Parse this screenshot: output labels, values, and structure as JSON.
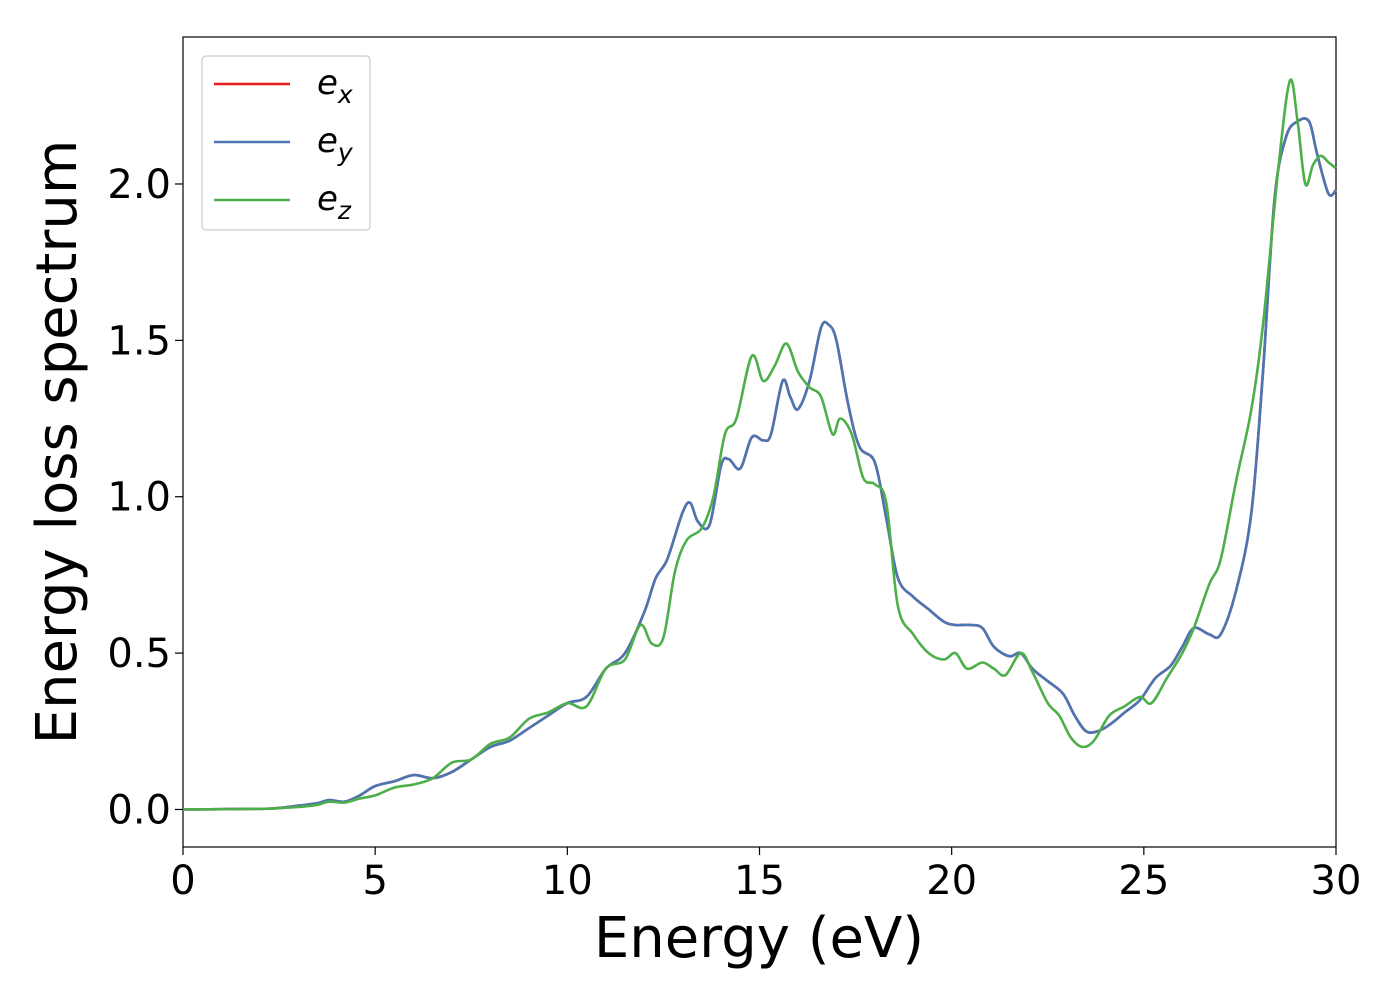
{
  "chart_data": {
    "type": "line",
    "xlabel": "Energy (eV)",
    "ylabel": "Energy loss spectrum",
    "xlim": [
      0,
      30
    ],
    "ylim": [
      -0.12,
      2.47
    ],
    "xticks": [
      0,
      5,
      10,
      15,
      20,
      25,
      30
    ],
    "xtick_labels": [
      "0",
      "5",
      "10",
      "15",
      "20",
      "25",
      "30"
    ],
    "yticks": [
      0.0,
      0.5,
      1.0,
      1.5,
      2.0
    ],
    "ytick_labels": [
      "0.0",
      "0.5",
      "1.0",
      "1.5",
      "2.0"
    ],
    "grid": false,
    "legend_position": "top-left",
    "series": [
      {
        "name": "e_x",
        "label_base": "e",
        "label_sub": "x",
        "color": "#e41a1c",
        "x": [
          0,
          2,
          2.5,
          3,
          3.5,
          3.8,
          4.2,
          4.6,
          5,
          5.5,
          6,
          6.5,
          7,
          7.5,
          8,
          8.5,
          9,
          9.5,
          10,
          10.5,
          11,
          11.5,
          12,
          12.3,
          12.6,
          13,
          13.2,
          13.4,
          13.7,
          14,
          14.2,
          14.5,
          14.8,
          15.1,
          15.3,
          15.6,
          15.8,
          16,
          16.3,
          16.6,
          16.8,
          17,
          17.3,
          17.6,
          18,
          18.3,
          18.6,
          19,
          19.4,
          19.8,
          20.1,
          20.5,
          20.8,
          21.1,
          21.5,
          21.8,
          22.1,
          22.5,
          22.9,
          23.2,
          23.5,
          23.8,
          24.1,
          24.5,
          24.9,
          25.3,
          25.7,
          26,
          26.3,
          26.7,
          27,
          27.4,
          27.8,
          28.1,
          28.4,
          28.7,
          29,
          29.3,
          29.5,
          29.8,
          30
        ],
        "values": [
          0,
          0.002,
          0.005,
          0.012,
          0.02,
          0.03,
          0.025,
          0.045,
          0.075,
          0.09,
          0.11,
          0.1,
          0.12,
          0.16,
          0.2,
          0.22,
          0.26,
          0.3,
          0.34,
          0.36,
          0.45,
          0.5,
          0.63,
          0.74,
          0.8,
          0.95,
          0.98,
          0.92,
          0.91,
          1.1,
          1.12,
          1.09,
          1.19,
          1.18,
          1.2,
          1.37,
          1.32,
          1.28,
          1.37,
          1.54,
          1.55,
          1.5,
          1.3,
          1.16,
          1.11,
          0.93,
          0.74,
          0.68,
          0.64,
          0.6,
          0.59,
          0.59,
          0.58,
          0.52,
          0.49,
          0.5,
          0.45,
          0.41,
          0.37,
          0.3,
          0.25,
          0.25,
          0.27,
          0.31,
          0.35,
          0.42,
          0.46,
          0.52,
          0.58,
          0.56,
          0.56,
          0.7,
          0.95,
          1.4,
          1.95,
          2.15,
          2.2,
          2.2,
          2.1,
          1.97,
          1.98
        ]
      },
      {
        "name": "e_y",
        "label_base": "e",
        "label_sub": "y",
        "color": "#4a77b4",
        "x": [
          0,
          2,
          2.5,
          3,
          3.5,
          3.8,
          4.2,
          4.6,
          5,
          5.5,
          6,
          6.5,
          7,
          7.5,
          8,
          8.5,
          9,
          9.5,
          10,
          10.5,
          11,
          11.5,
          12,
          12.3,
          12.6,
          13,
          13.2,
          13.4,
          13.7,
          14,
          14.2,
          14.5,
          14.8,
          15.1,
          15.3,
          15.6,
          15.8,
          16,
          16.3,
          16.6,
          16.8,
          17,
          17.3,
          17.6,
          18,
          18.3,
          18.6,
          19,
          19.4,
          19.8,
          20.1,
          20.5,
          20.8,
          21.1,
          21.5,
          21.8,
          22.1,
          22.5,
          22.9,
          23.2,
          23.5,
          23.8,
          24.1,
          24.5,
          24.9,
          25.3,
          25.7,
          26,
          26.3,
          26.7,
          27,
          27.4,
          27.8,
          28.1,
          28.4,
          28.7,
          29,
          29.3,
          29.5,
          29.8,
          30
        ],
        "values": [
          0,
          0.002,
          0.005,
          0.012,
          0.02,
          0.03,
          0.025,
          0.045,
          0.075,
          0.09,
          0.11,
          0.1,
          0.12,
          0.16,
          0.2,
          0.22,
          0.26,
          0.3,
          0.34,
          0.36,
          0.45,
          0.5,
          0.63,
          0.74,
          0.8,
          0.95,
          0.98,
          0.92,
          0.91,
          1.1,
          1.12,
          1.09,
          1.19,
          1.18,
          1.2,
          1.37,
          1.32,
          1.28,
          1.37,
          1.54,
          1.55,
          1.5,
          1.3,
          1.16,
          1.11,
          0.93,
          0.74,
          0.68,
          0.64,
          0.6,
          0.59,
          0.59,
          0.58,
          0.52,
          0.49,
          0.5,
          0.45,
          0.41,
          0.37,
          0.3,
          0.25,
          0.25,
          0.27,
          0.31,
          0.35,
          0.42,
          0.46,
          0.52,
          0.58,
          0.56,
          0.56,
          0.7,
          0.95,
          1.4,
          1.95,
          2.15,
          2.2,
          2.2,
          2.1,
          1.97,
          1.98
        ]
      },
      {
        "name": "e_z",
        "label_base": "e",
        "label_sub": "z",
        "color": "#4daf4a",
        "x": [
          0,
          2,
          2.5,
          3,
          3.5,
          3.8,
          4.2,
          4.6,
          5,
          5.5,
          6,
          6.5,
          7,
          7.5,
          8,
          8.5,
          9,
          9.5,
          10,
          10.5,
          11,
          11.5,
          11.9,
          12.2,
          12.5,
          12.8,
          13.1,
          13.5,
          13.8,
          14.1,
          14.4,
          14.8,
          15.1,
          15.4,
          15.7,
          16,
          16.3,
          16.6,
          16.9,
          17.1,
          17.4,
          17.7,
          18,
          18.3,
          18.6,
          19,
          19.4,
          19.8,
          20.1,
          20.4,
          20.8,
          21.1,
          21.4,
          21.8,
          22.1,
          22.5,
          22.8,
          23.1,
          23.4,
          23.7,
          24.1,
          24.5,
          24.9,
          25.2,
          25.6,
          26,
          26.3,
          26.7,
          27,
          27.4,
          27.8,
          28.1,
          28.5,
          28.8,
          29,
          29.2,
          29.4,
          29.6,
          29.8,
          30
        ],
        "values": [
          0,
          0.002,
          0.004,
          0.008,
          0.015,
          0.025,
          0.022,
          0.035,
          0.045,
          0.07,
          0.08,
          0.1,
          0.15,
          0.16,
          0.21,
          0.23,
          0.29,
          0.31,
          0.34,
          0.33,
          0.45,
          0.48,
          0.59,
          0.53,
          0.55,
          0.76,
          0.86,
          0.9,
          1.0,
          1.2,
          1.25,
          1.45,
          1.37,
          1.42,
          1.49,
          1.4,
          1.35,
          1.32,
          1.2,
          1.25,
          1.2,
          1.06,
          1.04,
          0.98,
          0.65,
          0.56,
          0.5,
          0.48,
          0.5,
          0.45,
          0.47,
          0.45,
          0.43,
          0.5,
          0.44,
          0.34,
          0.3,
          0.23,
          0.2,
          0.22,
          0.3,
          0.33,
          0.36,
          0.34,
          0.42,
          0.5,
          0.58,
          0.72,
          0.8,
          1.05,
          1.28,
          1.55,
          2.05,
          2.33,
          2.2,
          2.0,
          2.06,
          2.09,
          2.07,
          2.05
        ]
      }
    ]
  }
}
